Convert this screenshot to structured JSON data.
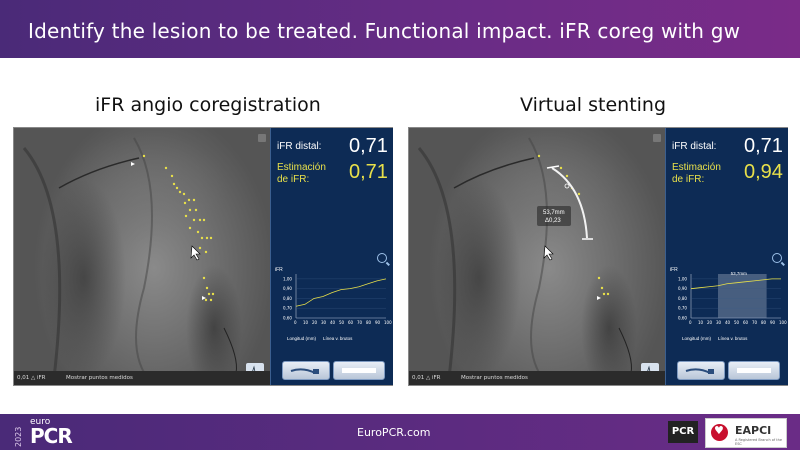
{
  "header": {
    "title": "Identify the lesion to be treated. Functional impact. iFR coreg with gw"
  },
  "left": {
    "section_title": "iFR angio coregistration",
    "distal_label": "iFR distal:",
    "distal_value": "0,71",
    "est_label_1": "Estimación",
    "est_label_2": "de iFR:",
    "est_value": "0,71",
    "chart_ylabel": "iFR",
    "chart_xlabel": "Longitud (mm)",
    "chart_legend": "Línea v. brutos",
    "bottom_left": "0,01 △ iFR",
    "bottom_right": "Mostrar puntos medidos"
  },
  "right": {
    "section_title": "Virtual stenting",
    "distal_label": "iFR distal:",
    "distal_value": "0,71",
    "est_label_1": "Estimación",
    "est_label_2": "de iFR:",
    "est_value": "0,94",
    "stent_length": "53,7mm",
    "stent_delta": "Δ0,23",
    "chart_badge": "53,7mm",
    "chart_ylabel": "iFR",
    "chart_xlabel": "Longitud (mm)",
    "chart_legend": "Línea v. brutos",
    "bottom_left": "0,01 △ iFR",
    "bottom_right": "Mostrar puntos medidos"
  },
  "chart_data": [
    {
      "type": "line",
      "x": [
        0,
        10,
        20,
        30,
        40,
        50,
        60,
        70,
        80,
        90,
        100
      ],
      "y": [
        0.72,
        0.74,
        0.8,
        0.82,
        0.86,
        0.89,
        0.9,
        0.92,
        0.95,
        0.98,
        1.0
      ],
      "xlabel": "Longitud (mm)",
      "ylabel": "iFR",
      "xticks": [
        "0",
        "10",
        "20",
        "30",
        "40",
        "50",
        "60",
        "70",
        "80",
        "90",
        "100"
      ],
      "yticks": [
        "0,60",
        "0,70",
        "0,80",
        "0,90",
        "1,00"
      ],
      "xlim": [
        0,
        100
      ],
      "ylim": [
        0.6,
        1.05
      ]
    },
    {
      "type": "line",
      "x": [
        0,
        10,
        20,
        30,
        40,
        50,
        60,
        70,
        80,
        90,
        100
      ],
      "y": [
        0.9,
        0.91,
        0.92,
        0.93,
        0.95,
        0.96,
        0.97,
        0.98,
        0.99,
        1.0,
        1.0
      ],
      "xlabel": "Longitud (mm)",
      "ylabel": "iFR",
      "xticks": [
        "0",
        "10",
        "20",
        "30",
        "40",
        "50",
        "60",
        "70",
        "80",
        "90",
        "100"
      ],
      "yticks": [
        "0,60",
        "0,70",
        "0,80",
        "0,90",
        "1,00"
      ],
      "xlim": [
        0,
        100
      ],
      "ylim": [
        0.6,
        1.05
      ]
    }
  ],
  "footer": {
    "url": "EuroPCR.com",
    "year": "2023",
    "euro": "euro",
    "pcr": "PCR",
    "pcr_small": "PCR",
    "eapci": "EAPCI",
    "eapci_sub": "A Registered Branch of the ESC"
  }
}
